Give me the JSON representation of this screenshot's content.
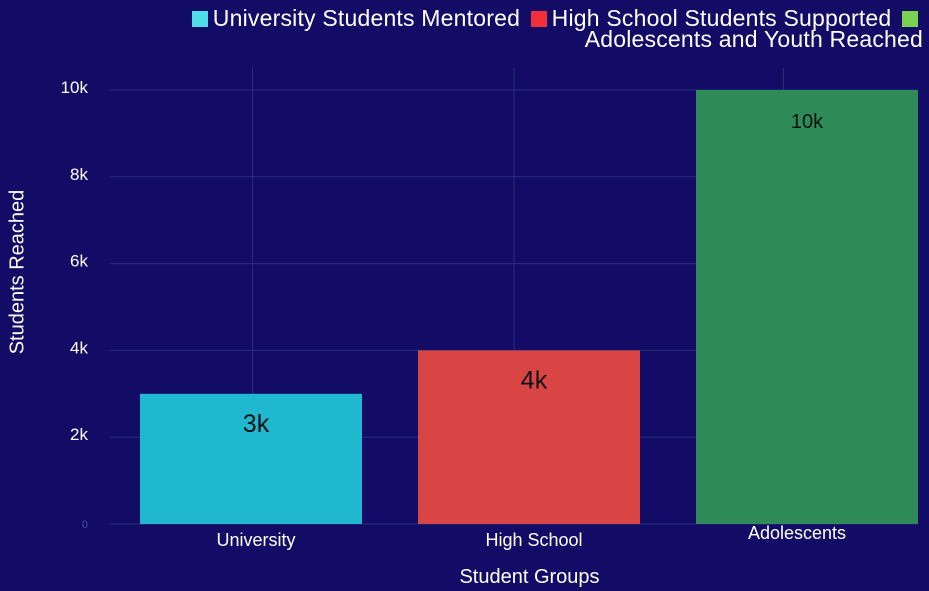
{
  "legend": {
    "items": [
      {
        "label": "University Students Mentored",
        "color": "#4fdde8"
      },
      {
        "label": "High School Students Supported",
        "color": "#f22f3a"
      },
      {
        "label": "Adolescents and Youth Reached",
        "color": "#7ad04f"
      }
    ]
  },
  "axes": {
    "x_title": "Student Groups",
    "y_title": "Students Reached"
  },
  "chart_data": {
    "type": "bar",
    "categories": [
      "University",
      "High School",
      "Adolescents"
    ],
    "values": [
      3000,
      4000,
      10000
    ],
    "data_labels": [
      "3k",
      "4k",
      "10k"
    ],
    "bar_colors": [
      "#1fb8cf",
      "#d94545",
      "#2e8b57"
    ],
    "xlabel": "Student Groups",
    "ylabel": "Students Reached",
    "ylim": [
      0,
      10000
    ],
    "yticks": [
      0,
      2000,
      4000,
      6000,
      8000,
      10000
    ],
    "ytick_labels": [
      "0",
      "2k",
      "4k",
      "6k",
      "8k",
      "10k"
    ],
    "grid": true,
    "legend_position": "top-right"
  },
  "colors": {
    "background": "#120c66",
    "grid": "#2a2f7a",
    "text": "#ffffff"
  }
}
